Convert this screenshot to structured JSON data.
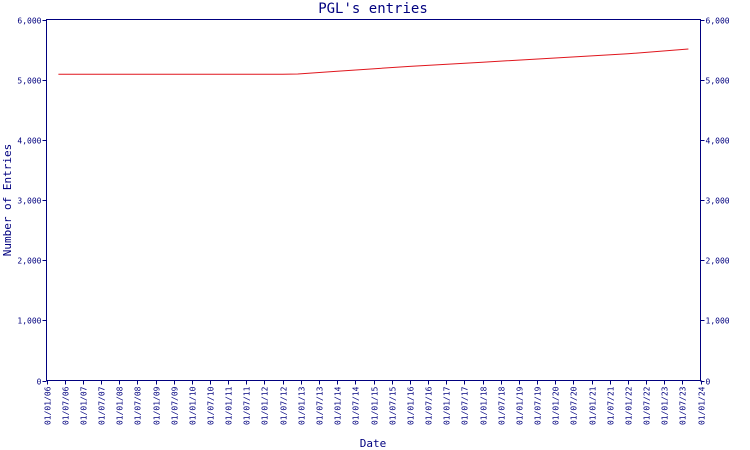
{
  "chart_data": {
    "type": "line",
    "title": "PGL's entries",
    "xlabel": "Date",
    "ylabel": "Number of Entries",
    "ylim": [
      0,
      6000
    ],
    "yticks": [
      0,
      1000,
      2000,
      3000,
      4000,
      5000,
      6000
    ],
    "ytick_labels": [
      "0",
      "1,000",
      "2,000",
      "3,000",
      "4,000",
      "5,000",
      "6,000"
    ],
    "right_axis": true,
    "grid": false,
    "x_tick_labels": [
      "01/01/06",
      "01/07/06",
      "01/01/07",
      "01/07/07",
      "01/01/08",
      "01/07/08",
      "01/01/09",
      "01/07/09",
      "01/01/10",
      "01/07/10",
      "01/01/11",
      "01/07/11",
      "01/01/12",
      "01/07/12",
      "01/01/13",
      "01/07/13",
      "01/01/14",
      "01/07/14",
      "01/01/15",
      "01/07/15",
      "01/01/16",
      "01/07/16",
      "01/01/17",
      "01/07/17",
      "01/01/18",
      "01/07/18",
      "01/01/19",
      "01/07/19",
      "01/01/20",
      "01/07/20",
      "01/01/21",
      "01/07/21",
      "01/01/22",
      "01/07/22",
      "01/01/23",
      "01/07/23",
      "01/01/24"
    ],
    "series": [
      {
        "color": "#e0161d",
        "x": [
          "2006-05-01",
          "2012-07-01",
          "2012-12-01",
          "2014-01-01",
          "2016-01-01",
          "2018-01-01",
          "2020-01-01",
          "2022-01-01",
          "2023-09-01"
        ],
        "values": [
          5090,
          5090,
          5095,
          5140,
          5220,
          5290,
          5360,
          5430,
          5510
        ]
      }
    ]
  }
}
